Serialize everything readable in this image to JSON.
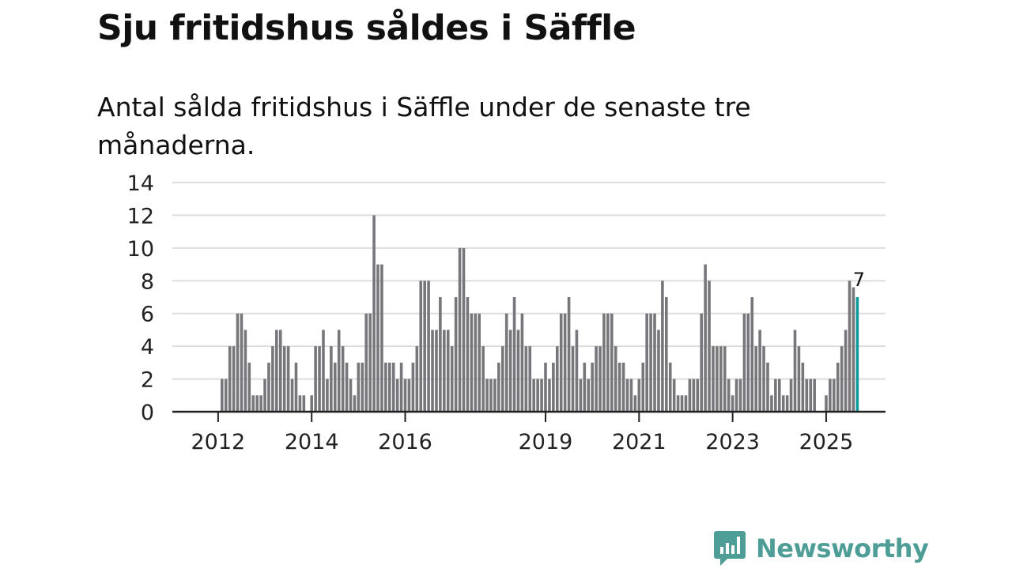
{
  "title": "Sju fritidshus såldes i Säffle",
  "subtitle": "Antal sålda fritidshus i Säffle under de senaste tre månaderna.",
  "brand": {
    "name": "Newsworthy",
    "icon": "newsworthy-logo-icon"
  },
  "colors": {
    "bar": "#77767b",
    "highlight": "#0d9a9a",
    "grid": "#dddddd",
    "axis": "#222222",
    "brand": "#4e9e97"
  },
  "chart_data": {
    "type": "bar",
    "title": "Sju fritidshus såldes i Säffle",
    "xlabel": "",
    "ylabel": "",
    "ylim": [
      0,
      14
    ],
    "yticks": [
      0,
      2,
      4,
      6,
      8,
      10,
      12,
      14
    ],
    "xtick_labels": [
      "2012",
      "2014",
      "2016",
      "2019",
      "2021",
      "2023",
      "2025"
    ],
    "start": "2011-04",
    "end": "2025-10",
    "values": [
      0,
      0,
      0,
      0,
      0,
      0,
      0,
      0,
      0,
      0,
      2,
      2,
      4,
      4,
      6,
      6,
      5,
      3,
      1,
      1,
      1,
      2,
      3,
      4,
      5,
      5,
      4,
      4,
      2,
      3,
      1,
      1,
      0,
      1,
      4,
      4,
      5,
      2,
      4,
      3,
      5,
      4,
      3,
      2,
      1,
      3,
      3,
      6,
      6,
      12,
      9,
      9,
      3,
      3,
      3,
      2,
      3,
      2,
      2,
      3,
      4,
      8,
      8,
      8,
      5,
      5,
      7,
      5,
      5,
      4,
      7,
      10,
      10,
      7,
      6,
      6,
      6,
      4,
      2,
      2,
      2,
      3,
      4,
      6,
      5,
      7,
      5,
      6,
      4,
      4,
      2,
      2,
      2,
      3,
      2,
      3,
      4,
      6,
      6,
      7,
      4,
      5,
      2,
      3,
      2,
      3,
      4,
      4,
      6,
      6,
      6,
      4,
      3,
      3,
      2,
      2,
      1,
      2,
      3,
      6,
      6,
      6,
      5,
      8,
      7,
      3,
      2,
      1,
      1,
      1,
      2,
      2,
      2,
      6,
      9,
      8,
      4,
      4,
      4,
      4,
      2,
      1,
      2,
      2,
      6,
      6,
      7,
      4,
      5,
      4,
      3,
      1,
      2,
      2,
      1,
      1,
      2,
      5,
      4,
      3,
      2,
      2,
      2,
      0,
      0,
      1,
      2,
      2,
      3,
      4,
      5,
      8,
      7.6,
      7
    ],
    "highlight_index": 173,
    "highlight_label": "7"
  }
}
